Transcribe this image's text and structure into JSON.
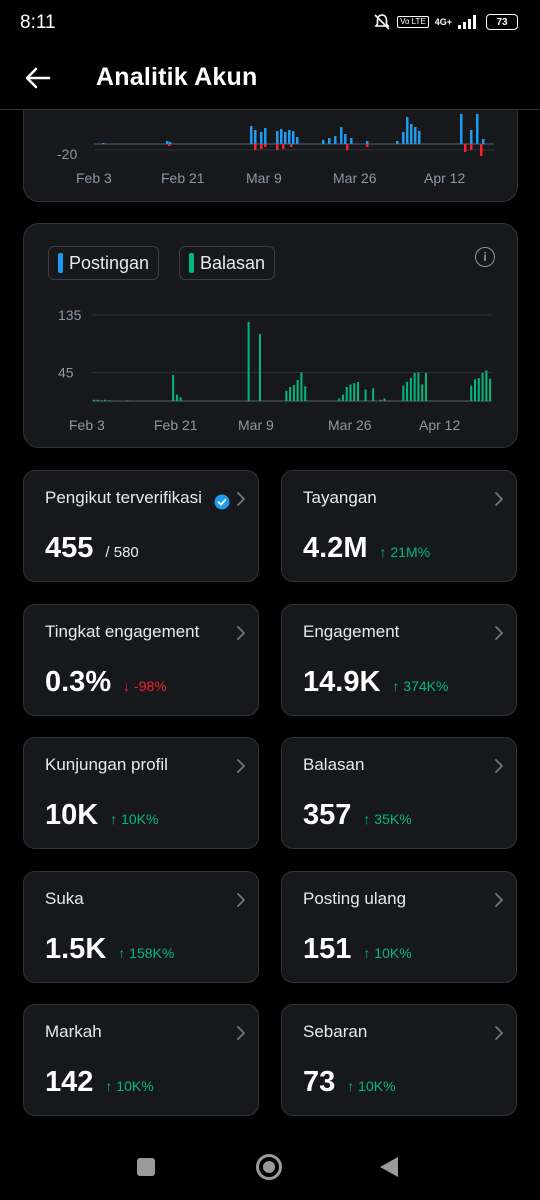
{
  "status_bar": {
    "time": "8:11",
    "network": "4G+",
    "volte": "Vo LTE",
    "battery": "73"
  },
  "header": {
    "title": "Analitik Akun"
  },
  "chart_top": {
    "chart_data": {
      "type": "bar",
      "ytick_visible": "-20",
      "x_ticks": [
        "Feb 3",
        "Feb 21",
        "Mar 9",
        "Mar 26",
        "Apr 12"
      ],
      "positive_color": "#1d9bf0",
      "negative_color": "#f4212e"
    }
  },
  "chart_posts": {
    "legend": [
      {
        "label": "Postingan",
        "color": "#1d9bf0"
      },
      {
        "label": "Balasan",
        "color": "#00ba7c"
      }
    ],
    "chart_data": {
      "type": "bar",
      "y_ticks": [
        "135",
        "45"
      ],
      "ylim": [
        0,
        135
      ],
      "x_ticks": [
        "Feb 3",
        "Feb 21",
        "Mar 9",
        "Mar 26",
        "Apr 12"
      ],
      "series": [
        {
          "name": "Balasan",
          "color": "#00ba7c",
          "values": [
            2,
            2,
            1,
            2,
            1,
            0,
            0,
            0,
            0,
            1,
            0,
            0,
            0,
            0,
            0,
            0,
            0,
            0,
            0,
            0,
            0,
            41,
            10,
            6,
            0,
            0,
            0,
            0,
            0,
            0,
            0,
            0,
            0,
            0,
            0,
            0,
            0,
            0,
            0,
            0,
            0,
            124,
            0,
            0,
            105,
            0,
            0,
            0,
            0,
            0,
            0,
            16,
            22,
            25,
            33,
            45,
            23,
            0,
            0,
            0,
            0,
            0,
            0,
            0,
            0,
            4,
            10,
            22,
            26,
            28,
            30,
            0,
            18,
            0,
            20,
            0,
            2,
            4,
            0,
            0,
            0,
            0,
            24,
            30,
            36,
            44,
            45,
            26,
            44,
            0,
            0,
            0,
            0,
            0,
            0,
            0,
            0,
            0,
            0,
            0,
            24,
            34,
            36,
            44,
            48,
            35
          ]
        }
      ]
    }
  },
  "metrics": [
    {
      "label": "Pengikut terverifikasi",
      "value": "455",
      "sub": "/ 580",
      "verified": true
    },
    {
      "label": "Tayangan",
      "value": "4.2M",
      "delta": "↑ 21M%",
      "direction": "up"
    },
    {
      "label": "Tingkat engagement",
      "value": "0.3%",
      "delta": "↓ -98%",
      "direction": "down"
    },
    {
      "label": "Engagement",
      "value": "14.9K",
      "delta": "↑ 374K%",
      "direction": "up"
    },
    {
      "label": "Kunjungan profil",
      "value": "10K",
      "delta": "↑ 10K%",
      "direction": "up"
    },
    {
      "label": "Balasan",
      "value": "357",
      "delta": "↑ 35K%",
      "direction": "up"
    },
    {
      "label": "Suka",
      "value": "1.5K",
      "delta": "↑ 158K%",
      "direction": "up"
    },
    {
      "label": "Posting ulang",
      "value": "151",
      "delta": "↑ 10K%",
      "direction": "up"
    },
    {
      "label": "Markah",
      "value": "142",
      "delta": "↑ 10K%",
      "direction": "up"
    },
    {
      "label": "Sebaran",
      "value": "73",
      "delta": "↑ 10K%",
      "direction": "up"
    }
  ],
  "nav": {
    "recents": "recents-icon",
    "home": "home-icon",
    "back": "back-icon"
  }
}
